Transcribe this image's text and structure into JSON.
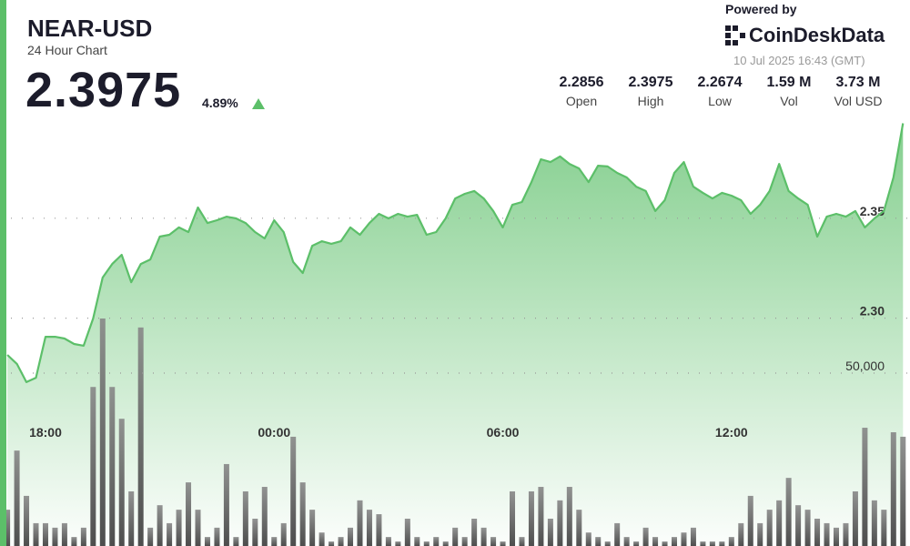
{
  "header": {
    "symbol": "NEAR-USD",
    "subtitle": "24 Hour Chart",
    "price": "2.3975",
    "change": "4.89%",
    "powered_by": "Powered by",
    "brand": "CoinDeskData",
    "timestamp": "10 Jul 2025 16:43 (GMT)"
  },
  "stats": [
    {
      "value": "2.2856",
      "label": "Open"
    },
    {
      "value": "2.3975",
      "label": "High"
    },
    {
      "value": "2.2674",
      "label": "Low"
    },
    {
      "value": "1.59 M",
      "label": "Vol"
    },
    {
      "value": "3.73 M",
      "label": "Vol USD"
    }
  ],
  "chart_data": {
    "type": "line",
    "categories": [
      null,
      null,
      null,
      null,
      "18:00",
      null,
      null,
      null,
      null,
      null,
      null,
      null,
      null,
      null,
      null,
      null,
      null,
      null,
      null,
      null,
      null,
      null,
      null,
      null,
      null,
      null,
      null,
      null,
      "00:00",
      null,
      null,
      null,
      null,
      null,
      null,
      null,
      null,
      null,
      null,
      null,
      null,
      null,
      null,
      null,
      null,
      null,
      null,
      null,
      null,
      null,
      null,
      null,
      "06:00",
      null,
      null,
      null,
      null,
      null,
      null,
      null,
      null,
      null,
      null,
      null,
      null,
      null,
      null,
      null,
      null,
      null,
      null,
      null,
      null,
      null,
      null,
      null,
      "12:00",
      null,
      null,
      null,
      null,
      null,
      null,
      null,
      null,
      null,
      null,
      null,
      null,
      null,
      null,
      null,
      null,
      null,
      null
    ],
    "series": [
      {
        "type": "line",
        "color": "#5cbf69",
        "values": [
          2.2816,
          2.2771,
          2.268,
          2.2702,
          2.2907,
          2.2907,
          2.2898,
          2.2871,
          2.2862,
          2.2998,
          2.3203,
          2.3271,
          2.3317,
          2.318,
          2.3271,
          2.3294,
          2.3408,
          2.3417,
          2.3454,
          2.3431,
          2.3554,
          2.3476,
          2.349,
          2.3508,
          2.3499,
          2.3476,
          2.3431,
          2.3399,
          2.349,
          2.3431,
          2.3281,
          2.3226,
          2.3362,
          2.3385,
          2.3372,
          2.3385,
          2.3454,
          2.3417,
          2.3476,
          2.3522,
          2.3499,
          2.3522,
          2.3508,
          2.3517,
          2.3417,
          2.3431,
          2.3499,
          2.3599,
          2.3622,
          2.3636,
          2.3599,
          2.3536,
          2.3454,
          2.3567,
          2.3581,
          2.3681,
          2.3795,
          2.3781,
          2.3809,
          2.3772,
          2.3749,
          2.3681,
          2.3763,
          2.3759,
          2.3727,
          2.3704,
          2.3658,
          2.3636,
          2.3536,
          2.359,
          2.3727,
          2.3781,
          2.3658,
          2.3627,
          2.3599,
          2.3627,
          2.3613,
          2.359,
          2.3522,
          2.3567,
          2.3636,
          2.3772,
          2.3636,
          2.3599,
          2.3567,
          2.3408,
          2.3508,
          2.3522,
          2.3508,
          2.3536,
          2.3454,
          2.3499,
          2.3536,
          2.3704,
          2.3975
        ]
      },
      {
        "type": "bar",
        "axis": "y2",
        "color": "#555555",
        "values": [
          10500,
          27600,
          14500,
          6600,
          6600,
          5300,
          6600,
          2600,
          5300,
          46000,
          65800,
          46000,
          36800,
          15800,
          63200,
          5300,
          11800,
          6600,
          10500,
          18400,
          10500,
          2600,
          5300,
          23700,
          2600,
          15800,
          7900,
          17100,
          2600,
          6600,
          31600,
          18400,
          10500,
          3900,
          1300,
          2600,
          5300,
          13200,
          10500,
          9200,
          2600,
          1300,
          7900,
          2600,
          1300,
          2600,
          1300,
          5300,
          2600,
          7900,
          5300,
          2600,
          1300,
          15800,
          2600,
          15800,
          17100,
          7900,
          13200,
          17100,
          10500,
          3900,
          2600,
          1300,
          6600,
          2600,
          1300,
          5300,
          2600,
          1300,
          2600,
          3900,
          5300,
          1300,
          1300,
          1300,
          2600,
          6600,
          14500,
          6600,
          10500,
          13200,
          19700,
          11800,
          10500,
          7900,
          6600,
          5300,
          6600,
          15800,
          34200,
          13200,
          10500,
          32900,
          31600
        ]
      }
    ],
    "ylim": [
      2.186,
      2.4
    ],
    "yticks": [
      {
        "value": 2.3,
        "label": "2.30"
      },
      2.35
    ],
    "y2lim": [
      0,
      123700
    ],
    "y2ticks": [
      {
        "value": 50000,
        "label": "50,000"
      }
    ],
    "grid": true
  }
}
